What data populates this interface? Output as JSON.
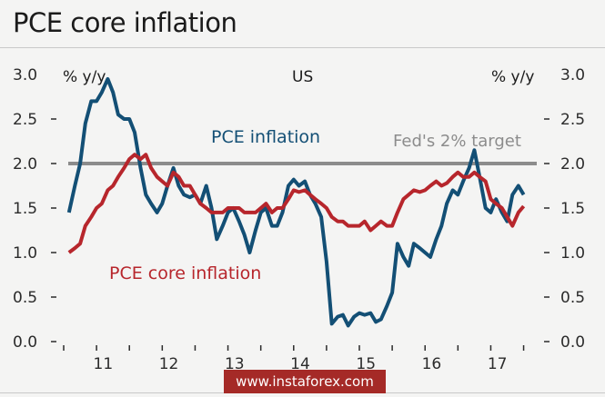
{
  "title": "PCE core inflation",
  "watermark": "www.instaforex.com",
  "colors": {
    "pce": "#134f75",
    "core": "#b7262c",
    "target": "#8c8c8c"
  },
  "chart_data": {
    "type": "line",
    "title": "PCE core inflation",
    "subtitle": "US",
    "ylabel_left": "% y/y",
    "ylabel_right": "% y/y",
    "ylim": [
      0,
      3
    ],
    "yticks": [
      "0.0",
      "0.5",
      "1.0",
      "1.5",
      "2.0",
      "2.5",
      "3.0"
    ],
    "xlim": [
      2010.5,
      2017.7
    ],
    "xticks": [
      {
        "label": "11",
        "at": 2011.0
      },
      {
        "label": "12",
        "at": 2012.0
      },
      {
        "label": "13",
        "at": 2013.0
      },
      {
        "label": "14",
        "at": 2014.0
      },
      {
        "label": "15",
        "at": 2015.0
      },
      {
        "label": "16",
        "at": 2016.0
      },
      {
        "label": "17",
        "at": 2017.0
      }
    ],
    "annotations": [
      {
        "text": "PCE inflation",
        "series": "pce"
      },
      {
        "text": "PCE core inflation",
        "series": "core"
      },
      {
        "text": "Fed's 2% target",
        "series": "target"
      }
    ],
    "target": {
      "name": "Fed's 2% target",
      "value": 2.0
    },
    "series": [
      {
        "key": "pce",
        "name": "PCE inflation",
        "x": [
          2010.58,
          2010.67,
          2010.75,
          2010.83,
          2010.92,
          2011.0,
          2011.08,
          2011.17,
          2011.25,
          2011.33,
          2011.42,
          2011.5,
          2011.58,
          2011.67,
          2011.75,
          2011.83,
          2011.92,
          2012.0,
          2012.08,
          2012.17,
          2012.25,
          2012.33,
          2012.42,
          2012.5,
          2012.58,
          2012.67,
          2012.75,
          2012.83,
          2012.92,
          2013.0,
          2013.08,
          2013.17,
          2013.25,
          2013.33,
          2013.42,
          2013.5,
          2013.58,
          2013.67,
          2013.75,
          2013.83,
          2013.92,
          2014.0,
          2014.08,
          2014.17,
          2014.25,
          2014.33,
          2014.42,
          2014.5,
          2014.58,
          2014.67,
          2014.75,
          2014.83,
          2014.92,
          2015.0,
          2015.08,
          2015.17,
          2015.25,
          2015.33,
          2015.42,
          2015.5,
          2015.58,
          2015.67,
          2015.75,
          2015.83,
          2015.92,
          2016.0,
          2016.08,
          2016.17,
          2016.25,
          2016.33,
          2016.42,
          2016.5,
          2016.58,
          2016.67,
          2016.75,
          2016.83,
          2016.92,
          2017.0,
          2017.08,
          2017.17,
          2017.25,
          2017.33,
          2017.42,
          2017.5
        ],
        "y": [
          1.45,
          1.75,
          2.0,
          2.45,
          2.7,
          2.7,
          2.8,
          2.95,
          2.8,
          2.55,
          2.5,
          2.5,
          2.35,
          1.95,
          1.65,
          1.55,
          1.45,
          1.55,
          1.75,
          1.95,
          1.75,
          1.65,
          1.62,
          1.65,
          1.55,
          1.75,
          1.5,
          1.15,
          1.3,
          1.45,
          1.5,
          1.35,
          1.2,
          1.0,
          1.25,
          1.45,
          1.5,
          1.3,
          1.3,
          1.45,
          1.75,
          1.82,
          1.75,
          1.8,
          1.65,
          1.55,
          1.4,
          0.9,
          0.2,
          0.28,
          0.3,
          0.18,
          0.28,
          0.32,
          0.3,
          0.32,
          0.22,
          0.25,
          0.4,
          0.55,
          1.1,
          0.95,
          0.85,
          1.1,
          1.05,
          1.0,
          0.95,
          1.15,
          1.3,
          1.55,
          1.7,
          1.65,
          1.8,
          1.95,
          2.15,
          1.85,
          1.5,
          1.45,
          1.6,
          1.45,
          1.35,
          1.65,
          1.75,
          1.65
        ]
      },
      {
        "key": "core",
        "name": "PCE core inflation",
        "x": [
          2010.58,
          2010.67,
          2010.75,
          2010.83,
          2010.92,
          2011.0,
          2011.08,
          2011.17,
          2011.25,
          2011.33,
          2011.42,
          2011.5,
          2011.58,
          2011.67,
          2011.75,
          2011.83,
          2011.92,
          2012.0,
          2012.08,
          2012.17,
          2012.25,
          2012.33,
          2012.42,
          2012.5,
          2012.58,
          2012.67,
          2012.75,
          2012.83,
          2012.92,
          2013.0,
          2013.08,
          2013.17,
          2013.25,
          2013.33,
          2013.42,
          2013.5,
          2013.58,
          2013.67,
          2013.75,
          2013.83,
          2013.92,
          2014.0,
          2014.08,
          2014.17,
          2014.25,
          2014.33,
          2014.42,
          2014.5,
          2014.58,
          2014.67,
          2014.75,
          2014.83,
          2014.92,
          2015.0,
          2015.08,
          2015.17,
          2015.25,
          2015.33,
          2015.42,
          2015.5,
          2015.58,
          2015.67,
          2015.75,
          2015.83,
          2015.92,
          2016.0,
          2016.08,
          2016.17,
          2016.25,
          2016.33,
          2016.42,
          2016.5,
          2016.58,
          2016.67,
          2016.75,
          2016.83,
          2016.92,
          2017.0,
          2017.08,
          2017.17,
          2017.25,
          2017.33,
          2017.42,
          2017.5
        ],
        "y": [
          1.0,
          1.05,
          1.1,
          1.3,
          1.4,
          1.5,
          1.55,
          1.7,
          1.75,
          1.85,
          1.95,
          2.05,
          2.1,
          2.05,
          2.1,
          1.95,
          1.85,
          1.8,
          1.75,
          1.9,
          1.85,
          1.75,
          1.75,
          1.65,
          1.55,
          1.5,
          1.45,
          1.45,
          1.45,
          1.5,
          1.5,
          1.5,
          1.45,
          1.45,
          1.45,
          1.5,
          1.55,
          1.45,
          1.5,
          1.5,
          1.6,
          1.7,
          1.68,
          1.7,
          1.65,
          1.6,
          1.55,
          1.5,
          1.4,
          1.35,
          1.35,
          1.3,
          1.3,
          1.3,
          1.35,
          1.25,
          1.3,
          1.35,
          1.3,
          1.3,
          1.45,
          1.6,
          1.65,
          1.7,
          1.68,
          1.7,
          1.75,
          1.8,
          1.75,
          1.78,
          1.85,
          1.9,
          1.85,
          1.85,
          1.9,
          1.85,
          1.8,
          1.6,
          1.55,
          1.5,
          1.4,
          1.3,
          1.45,
          1.52
        ]
      }
    ]
  }
}
